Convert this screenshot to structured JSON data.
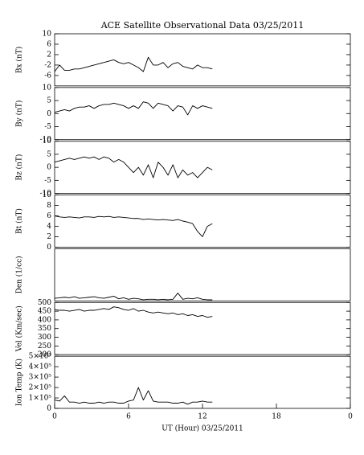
{
  "chart_data": [
    {
      "type": "line",
      "title": "ACE Satellite Observational Data   03/25/2011",
      "ylabel": "Bx (nT)",
      "x": [
        0,
        0.4,
        0.8,
        1.2,
        1.6,
        2,
        2.4,
        2.8,
        3.2,
        3.6,
        4,
        4.4,
        4.8,
        5.2,
        5.6,
        6,
        6.4,
        6.8,
        7.2,
        7.6,
        8,
        8.4,
        8.8,
        9.2,
        9.6,
        10,
        10.4,
        10.8,
        11.2,
        11.6,
        12,
        12.4,
        12.8
      ],
      "values": [
        -4.5,
        -2,
        -4,
        -4,
        -3.5,
        -3.5,
        -3,
        -2.5,
        -2,
        -1.5,
        -1,
        -0.5,
        0,
        -1,
        -1.5,
        -1,
        -2,
        -3,
        -4.5,
        1,
        -2,
        -2,
        -1,
        -3,
        -1.5,
        -1,
        -2.5,
        -3,
        -3.5,
        -2,
        -3,
        -3,
        -3.5
      ],
      "color": "#000000",
      "xlim": [
        0,
        24
      ],
      "ylim": [
        -10,
        10
      ],
      "yticks": [
        -6,
        -2,
        2,
        6,
        10
      ]
    },
    {
      "type": "line",
      "ylabel": "By (nT)",
      "x": [
        0,
        0.4,
        0.8,
        1.2,
        1.6,
        2,
        2.4,
        2.8,
        3.2,
        3.6,
        4,
        4.4,
        4.8,
        5.2,
        5.6,
        6,
        6.4,
        6.8,
        7.2,
        7.6,
        8,
        8.4,
        8.8,
        9.2,
        9.6,
        10,
        10.4,
        10.8,
        11.2,
        11.6,
        12,
        12.4,
        12.8
      ],
      "values": [
        0.5,
        1,
        1.5,
        1,
        2,
        2.5,
        2.5,
        3,
        2,
        3,
        3.5,
        3.5,
        4,
        3.5,
        3,
        2,
        3,
        2,
        4.5,
        4,
        2,
        4,
        3.5,
        3,
        1,
        3,
        2.5,
        -0.5,
        3,
        2,
        3,
        2.5,
        2
      ],
      "color": "#000000",
      "xlim": [
        0,
        24
      ],
      "ylim": [
        -10,
        10
      ],
      "yticks": [
        -10,
        -5,
        0,
        5,
        10
      ]
    },
    {
      "type": "line",
      "ylabel": "Bz (nT)",
      "x": [
        0,
        0.4,
        0.8,
        1.2,
        1.6,
        2,
        2.4,
        2.8,
        3.2,
        3.6,
        4,
        4.4,
        4.8,
        5.2,
        5.6,
        6,
        6.4,
        6.8,
        7.2,
        7.6,
        8,
        8.4,
        8.8,
        9.2,
        9.6,
        10,
        10.4,
        10.8,
        11.2,
        11.6,
        12,
        12.4,
        12.8
      ],
      "values": [
        2,
        2.5,
        3,
        3.5,
        3,
        3.5,
        4,
        3.5,
        4,
        3,
        4,
        3.5,
        2,
        3,
        2,
        0,
        -2,
        0,
        -3,
        1,
        -4,
        2,
        0,
        -3,
        1,
        -4,
        -1,
        -3,
        -2,
        -4,
        -2,
        0,
        -1
      ],
      "color": "#000000",
      "xlim": [
        0,
        24
      ],
      "ylim": [
        -10,
        10
      ],
      "yticks": [
        -10,
        -5,
        0,
        5,
        10
      ]
    },
    {
      "type": "line",
      "ylabel": "Bt (nT)",
      "x": [
        0,
        0.4,
        0.8,
        1.2,
        1.6,
        2,
        2.4,
        2.8,
        3.2,
        3.6,
        4,
        4.4,
        4.8,
        5.2,
        5.6,
        6,
        6.4,
        6.8,
        7.2,
        7.6,
        8,
        8.4,
        8.8,
        9.2,
        9.6,
        10,
        10.4,
        10.8,
        11.2,
        11.6,
        12,
        12.4,
        12.8
      ],
      "values": [
        6,
        5.8,
        5.7,
        5.8,
        5.7,
        5.6,
        5.8,
        5.8,
        5.7,
        5.9,
        5.8,
        5.9,
        5.7,
        5.8,
        5.7,
        5.6,
        5.5,
        5.5,
        5.3,
        5.4,
        5.3,
        5.2,
        5.3,
        5.2,
        5.1,
        5.3,
        5,
        4.8,
        4.5,
        3,
        2,
        4,
        4.5
      ],
      "color": "#000000",
      "xlim": [
        0,
        24
      ],
      "ylim": [
        0,
        10
      ],
      "yticks": [
        0,
        2,
        4,
        6,
        8,
        10
      ]
    },
    {
      "type": "line",
      "ylabel": "Den (1/cc)",
      "x": [
        0,
        0.4,
        0.8,
        1.2,
        1.6,
        2,
        2.4,
        2.8,
        3.2,
        3.6,
        4,
        4.4,
        4.8,
        5.2,
        5.6,
        6,
        6.4,
        6.8,
        7.2,
        7.6,
        8,
        8.4,
        8.8,
        9.2,
        9.6,
        10,
        10.4,
        10.8,
        11.2,
        11.6,
        12,
        12.4,
        12.8
      ],
      "values": [
        0.5,
        0.6,
        0.7,
        0.6,
        0.8,
        0.5,
        0.6,
        0.7,
        0.8,
        0.6,
        0.5,
        0.7,
        0.9,
        0.4,
        0.6,
        0.3,
        0.5,
        0.4,
        0.2,
        0.3,
        0.3,
        0.2,
        0.3,
        0.2,
        0.3,
        1.5,
        0.3,
        0.5,
        0.4,
        0.6,
        0.3,
        0.2,
        0.2
      ],
      "color": "#000000",
      "xlim": [
        0,
        24
      ],
      "ylim": [
        0,
        10
      ],
      "yticks": []
    },
    {
      "type": "line",
      "ylabel": "Vel (Km/sec)",
      "x": [
        0,
        0.4,
        0.8,
        1.2,
        1.6,
        2,
        2.4,
        2.8,
        3.2,
        3.6,
        4,
        4.4,
        4.8,
        5.2,
        5.6,
        6,
        6.4,
        6.8,
        7.2,
        7.6,
        8,
        8.4,
        8.8,
        9.2,
        9.6,
        10,
        10.4,
        10.8,
        11.2,
        11.6,
        12,
        12.4,
        12.8
      ],
      "values": [
        460,
        455,
        455,
        450,
        455,
        460,
        450,
        455,
        455,
        460,
        465,
        460,
        475,
        470,
        460,
        455,
        465,
        450,
        455,
        445,
        440,
        445,
        440,
        435,
        440,
        430,
        435,
        425,
        430,
        420,
        425,
        415,
        420
      ],
      "color": "#000000",
      "xlim": [
        0,
        24
      ],
      "ylim": [
        200,
        500
      ],
      "yticks": [
        200,
        250,
        300,
        350,
        400,
        450,
        500
      ]
    },
    {
      "type": "line",
      "ylabel": "Ion Temp (K)",
      "xlabel": "UT (Hour)   03/25/2011",
      "x": [
        0,
        0.4,
        0.8,
        1.2,
        1.6,
        2,
        2.4,
        2.8,
        3.2,
        3.6,
        4,
        4.4,
        4.8,
        5.2,
        5.6,
        6,
        6.4,
        6.8,
        7.2,
        7.6,
        8,
        8.4,
        8.8,
        9.2,
        9.6,
        10,
        10.4,
        10.8,
        11.2,
        11.6,
        12,
        12.4,
        12.8
      ],
      "values": [
        80000,
        70000,
        120000,
        60000,
        60000,
        50000,
        60000,
        50000,
        50000,
        60000,
        50000,
        60000,
        60000,
        50000,
        50000,
        70000,
        80000,
        200000,
        80000,
        170000,
        70000,
        60000,
        60000,
        60000,
        50000,
        50000,
        60000,
        40000,
        60000,
        60000,
        70000,
        60000,
        60000
      ],
      "color": "#000000",
      "xlim": [
        0,
        24
      ],
      "ylim": [
        0,
        500000
      ],
      "yticks": [
        0,
        {
          "value": 100000,
          "label": "1×10⁵"
        },
        {
          "value": 200000,
          "label": "2×10⁵"
        },
        {
          "value": 300000,
          "label": "3×10⁵"
        },
        {
          "value": 400000,
          "label": "4×10⁵"
        },
        {
          "value": 500000,
          "label": "5×10⁵"
        }
      ],
      "xticks": [
        0,
        6,
        12,
        18,
        {
          "value": 24,
          "label": "0"
        }
      ]
    }
  ]
}
